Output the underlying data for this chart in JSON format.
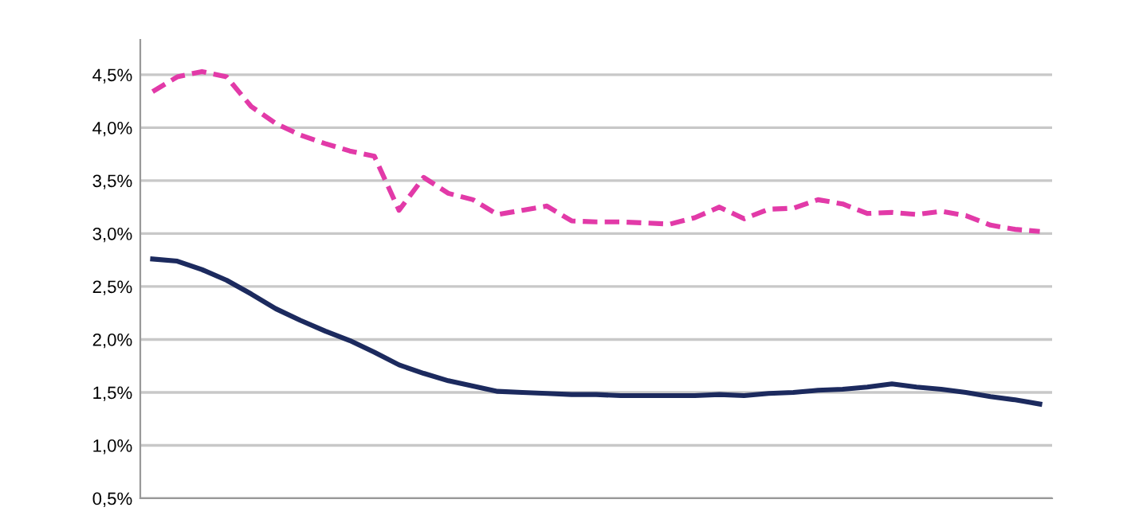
{
  "chart_data": {
    "type": "line",
    "categories": [
      null,
      null,
      null,
      null,
      null,
      null,
      null,
      null,
      null,
      null,
      null,
      null,
      null,
      null,
      null,
      null,
      null,
      null,
      null,
      null,
      null,
      null,
      null,
      null,
      null,
      null,
      null,
      null,
      null,
      null,
      null,
      null,
      null,
      null,
      null,
      null,
      null
    ],
    "series": [
      {
        "color": "#e23aa8",
        "line_style": "dashed",
        "values": [
          4.34,
          4.48,
          4.53,
          4.48,
          4.2,
          4.04,
          3.93,
          3.85,
          3.78,
          3.73,
          3.22,
          3.53,
          3.38,
          3.32,
          3.18,
          3.22,
          3.26,
          3.12,
          3.11,
          3.11,
          3.1,
          3.09,
          3.15,
          3.25,
          3.14,
          3.23,
          3.24,
          3.32,
          3.28,
          3.19,
          3.2,
          3.18,
          3.21,
          3.17,
          3.08,
          3.04,
          3.02
        ]
      },
      {
        "color": "#1c2a5e",
        "line_style": "solid",
        "values": [
          2.76,
          2.74,
          2.66,
          2.56,
          2.43,
          2.29,
          2.18,
          2.08,
          1.99,
          1.88,
          1.76,
          1.68,
          1.61,
          1.56,
          1.51,
          1.5,
          1.49,
          1.48,
          1.48,
          1.47,
          1.47,
          1.47,
          1.47,
          1.48,
          1.47,
          1.49,
          1.5,
          1.52,
          1.53,
          1.55,
          1.58,
          1.55,
          1.53,
          1.5,
          1.46,
          1.43,
          1.39
        ]
      }
    ],
    "ylim": [
      0.5,
      4.83
    ],
    "yticks": [
      {
        "value": 0.5,
        "label": "0,5%"
      },
      {
        "value": 1.0,
        "label": "1,0%"
      },
      {
        "value": 1.5,
        "label": "1,5%"
      },
      {
        "value": 2.0,
        "label": "2,0%"
      },
      {
        "value": 2.5,
        "label": "2,5%"
      },
      {
        "value": 3.0,
        "label": "3,0%"
      },
      {
        "value": 3.5,
        "label": "3,5%"
      },
      {
        "value": 4.0,
        "label": "4,0%"
      },
      {
        "value": 4.5,
        "label": "4,5%"
      }
    ],
    "grid": "y",
    "marker": "none"
  }
}
